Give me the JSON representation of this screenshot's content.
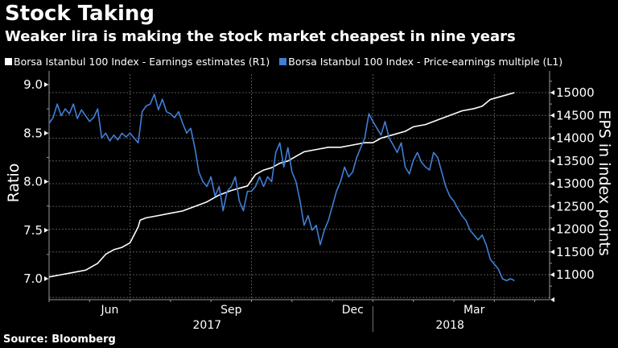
{
  "title": "Stock Taking",
  "subtitle": "Weaker lira is making the stock market cheapest in nine years",
  "source": "Source: Bloomberg",
  "colors": {
    "background": "#000000",
    "earnings": "#ffffff",
    "pe": "#3f7fd6",
    "grid": "#555555",
    "axis": "#999999"
  },
  "chart_data": {
    "type": "line",
    "title": "Stock Taking",
    "subtitle": "Weaker lira is making the stock market cheapest in nine years",
    "legend": [
      {
        "name": "Borsa Istanbul 100 Index - Earnings estimates (R1)",
        "color": "#ffffff"
      },
      {
        "name": "Borsa Istanbul 100 Index - Price-earnings multiple (L1)",
        "color": "#3f7fd6"
      }
    ],
    "legend_placement": "top-left",
    "ylabel_left": "Ratio",
    "ylabel_right": "EPS in index points",
    "ylim_left": [
      6.8,
      9.1
    ],
    "ylim_right": [
      10600,
      15200
    ],
    "yticks_left": [
      "9.0",
      "8.5",
      "8.0",
      "7.5",
      "7.0"
    ],
    "yticks_left_values": [
      9.0,
      8.5,
      8.0,
      7.5,
      7.0
    ],
    "yticks_right": [
      "15000",
      "14500",
      "14000",
      "13500",
      "13000",
      "12500",
      "12000",
      "11500",
      "11000"
    ],
    "yticks_right_values": [
      15000,
      14500,
      14000,
      13500,
      13000,
      12500,
      12000,
      11500,
      11000
    ],
    "x_range_months": [
      0,
      11.6
    ],
    "xticks": [
      {
        "label": "Jun",
        "month": 1.5
      },
      {
        "label": "Sep",
        "month": 4.5
      },
      {
        "label": "Dec",
        "month": 7.5
      },
      {
        "label": "Mar",
        "month": 10.5
      }
    ],
    "year_labels": [
      {
        "label": "2017",
        "month": 4.5
      },
      {
        "label": "2018",
        "month": 10.5
      }
    ],
    "x_axis_note": "month index 0 = start of May 2017",
    "grid": true,
    "series": [
      {
        "name": "Borsa Istanbul 100 Index - Earnings estimates (R1)",
        "axis": "right",
        "x": [
          0,
          0.3,
          0.6,
          0.9,
          1.2,
          1.4,
          1.6,
          1.8,
          2.0,
          2.2,
          2.25,
          2.4,
          2.7,
          3.0,
          3.3,
          3.6,
          3.9,
          4.2,
          4.5,
          4.7,
          4.9,
          5.1,
          5.3,
          5.5,
          5.7,
          5.9,
          6.1,
          6.3,
          6.6,
          6.9,
          7.2,
          7.5,
          7.8,
          8.0,
          8.2,
          8.4,
          8.6,
          8.8,
          9.0,
          9.3,
          9.6,
          9.9,
          10.2,
          10.5,
          10.7,
          10.9,
          11.1,
          11.3,
          11.5
        ],
        "values": [
          10950,
          11000,
          11050,
          11100,
          11250,
          11450,
          11550,
          11600,
          11700,
          12050,
          12200,
          12250,
          12300,
          12350,
          12400,
          12500,
          12600,
          12750,
          12850,
          12900,
          12950,
          13200,
          13300,
          13350,
          13450,
          13500,
          13600,
          13700,
          13750,
          13800,
          13800,
          13850,
          13900,
          13900,
          14000,
          14050,
          14100,
          14150,
          14250,
          14300,
          14400,
          14500,
          14600,
          14650,
          14700,
          14850,
          14900,
          14950,
          15000
        ]
      },
      {
        "name": "Borsa Istanbul 100 Index - Price-earnings multiple (L1)",
        "axis": "left",
        "x": [
          0,
          0.1,
          0.2,
          0.3,
          0.4,
          0.5,
          0.6,
          0.7,
          0.8,
          0.9,
          1.0,
          1.1,
          1.2,
          1.3,
          1.4,
          1.5,
          1.6,
          1.7,
          1.8,
          1.9,
          2.0,
          2.1,
          2.2,
          2.3,
          2.4,
          2.5,
          2.6,
          2.7,
          2.8,
          2.9,
          3.0,
          3.1,
          3.2,
          3.3,
          3.4,
          3.5,
          3.6,
          3.7,
          3.8,
          3.9,
          4.0,
          4.1,
          4.2,
          4.3,
          4.4,
          4.5,
          4.6,
          4.7,
          4.8,
          4.9,
          5.0,
          5.1,
          5.2,
          5.3,
          5.4,
          5.5,
          5.6,
          5.7,
          5.8,
          5.9,
          6.0,
          6.1,
          6.2,
          6.3,
          6.4,
          6.5,
          6.6,
          6.7,
          6.8,
          6.9,
          7.0,
          7.1,
          7.2,
          7.3,
          7.4,
          7.5,
          7.6,
          7.7,
          7.8,
          7.9,
          8.0,
          8.1,
          8.2,
          8.3,
          8.4,
          8.5,
          8.6,
          8.7,
          8.8,
          8.9,
          9.0,
          9.1,
          9.2,
          9.3,
          9.4,
          9.5,
          9.6,
          9.7,
          9.8,
          9.9,
          10.0,
          10.1,
          10.2,
          10.3,
          10.4,
          10.5,
          10.6,
          10.7,
          10.8,
          10.9,
          11.0,
          11.1,
          11.2,
          11.3,
          11.4,
          11.5
        ],
        "values": [
          8.6,
          8.66,
          8.8,
          8.68,
          8.75,
          8.7,
          8.8,
          8.65,
          8.74,
          8.68,
          8.62,
          8.66,
          8.75,
          8.45,
          8.5,
          8.42,
          8.48,
          8.43,
          8.5,
          8.46,
          8.5,
          8.45,
          8.4,
          8.72,
          8.78,
          8.8,
          8.9,
          8.74,
          8.85,
          8.72,
          8.7,
          8.66,
          8.72,
          8.6,
          8.5,
          8.55,
          8.35,
          8.1,
          8.0,
          7.95,
          8.05,
          7.85,
          7.95,
          7.7,
          7.9,
          7.95,
          8.05,
          7.8,
          7.7,
          7.9,
          7.9,
          7.95,
          8.05,
          7.95,
          8.05,
          8.0,
          8.3,
          8.4,
          8.15,
          8.35,
          8.1,
          8.0,
          7.8,
          7.55,
          7.65,
          7.5,
          7.55,
          7.35,
          7.5,
          7.6,
          7.75,
          7.9,
          8.0,
          8.15,
          8.05,
          8.1,
          8.25,
          8.35,
          8.45,
          8.7,
          8.62,
          8.55,
          8.48,
          8.62,
          8.45,
          8.38,
          8.3,
          8.4,
          8.15,
          8.08,
          8.22,
          8.3,
          8.2,
          8.15,
          8.12,
          8.3,
          8.25,
          8.1,
          7.95,
          7.85,
          7.8,
          7.72,
          7.65,
          7.6,
          7.5,
          7.45,
          7.4,
          7.45,
          7.35,
          7.2,
          7.15,
          7.1,
          7.0,
          6.98,
          7.0,
          6.98
        ]
      }
    ]
  }
}
